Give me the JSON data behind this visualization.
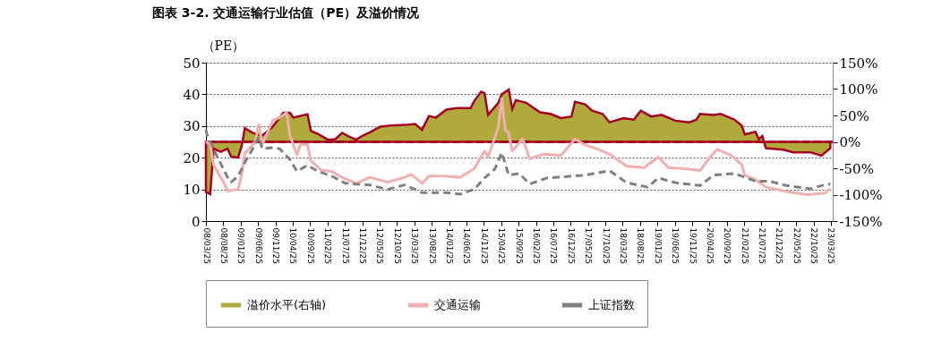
{
  "chart_data": {
    "type": "line",
    "title": "图表 3-2. 交通运输行业估值（PE）及溢价情况",
    "ylabel": "（PE）",
    "xlim": [
      "2008-03-25",
      "2023-04-10"
    ],
    "xticks": [
      {
        "value": "2008-03-25",
        "label": "08/03/25"
      },
      {
        "value": "2008-08-25",
        "label": "08/08/25"
      },
      {
        "value": "2009-01-25",
        "label": "09/01/25"
      },
      {
        "value": "2009-06-25",
        "label": "09/06/25"
      },
      {
        "value": "2009-11-25",
        "label": "09/11/25"
      },
      {
        "value": "2010-04-25",
        "label": "10/04/25"
      },
      {
        "value": "2010-09-25",
        "label": "10/09/25"
      },
      {
        "value": "2011-02-25",
        "label": "11/02/25"
      },
      {
        "value": "2011-07-25",
        "label": "11/07/25"
      },
      {
        "value": "2011-12-25",
        "label": "11/12/25"
      },
      {
        "value": "2012-05-25",
        "label": "12/05/25"
      },
      {
        "value": "2012-10-25",
        "label": "12/10/25"
      },
      {
        "value": "2013-03-25",
        "label": "13/03/25"
      },
      {
        "value": "2013-08-25",
        "label": "13/08/25"
      },
      {
        "value": "2014-01-25",
        "label": "14/01/25"
      },
      {
        "value": "2014-06-25",
        "label": "14/06/25"
      },
      {
        "value": "2014-11-25",
        "label": "14/11/25"
      },
      {
        "value": "2015-04-25",
        "label": "15/04/25"
      },
      {
        "value": "2015-09-25",
        "label": "15/09/25"
      },
      {
        "value": "2016-02-25",
        "label": "16/02/25"
      },
      {
        "value": "2016-07-25",
        "label": "16/07/25"
      },
      {
        "value": "2016-12-25",
        "label": "16/12/25"
      },
      {
        "value": "2017-05-25",
        "label": "17/05/25"
      },
      {
        "value": "2017-10-25",
        "label": "17/10/25"
      },
      {
        "value": "2018-03-25",
        "label": "18/03/25"
      },
      {
        "value": "2018-08-25",
        "label": "18/08/25"
      },
      {
        "value": "2019-01-25",
        "label": "19/01/25"
      },
      {
        "value": "2019-06-25",
        "label": "19/06/25"
      },
      {
        "value": "2019-11-25",
        "label": "19/11/25"
      },
      {
        "value": "2020-04-25",
        "label": "20/04/25"
      },
      {
        "value": "2020-09-25",
        "label": "20/09/25"
      },
      {
        "value": "2021-02-25",
        "label": "21/02/25"
      },
      {
        "value": "2021-07-25",
        "label": "21/07/25"
      },
      {
        "value": "2021-12-25",
        "label": "21/12/25"
      },
      {
        "value": "2022-05-25",
        "label": "22/05/25"
      },
      {
        "value": "2022-10-25",
        "label": "22/10/25"
      },
      {
        "value": "2023-03-25",
        "label": "23/03/25"
      }
    ],
    "ylim": [
      0,
      50
    ],
    "yticks": [
      0,
      10,
      20,
      30,
      40,
      50
    ],
    "y2lim": [
      -150,
      150
    ],
    "y2ticks": [
      {
        "value": 150,
        "label": "150%"
      },
      {
        "value": 100,
        "label": "100%"
      },
      {
        "value": 50,
        "label": "50%"
      },
      {
        "value": 0,
        "label": "0%"
      },
      {
        "value": -50,
        "label": "-50%"
      },
      {
        "value": -100,
        "label": "-100%"
      },
      {
        "value": -150,
        "label": "-150%"
      }
    ],
    "grid": "y",
    "legend": "bottom",
    "ref_lines": [
      {
        "axis": "y2",
        "value": 0,
        "color": "#a50021",
        "line_style": "dashed"
      }
    ],
    "series": [
      {
        "name": "溢价水平(右轴)",
        "type": "area",
        "axis": "y2",
        "color": "#b0aa3c",
        "x": [
          "2008-03-25",
          "2008-05",
          "2008-06",
          "2008-08",
          "2008-10",
          "2008-11",
          "2009-01",
          "2009-02",
          "2009-03",
          "2009-05",
          "2009-06",
          "2009-08",
          "2009-10",
          "2009-11",
          "2010-01",
          "2010-02",
          "2010-04",
          "2010-05",
          "2010-07",
          "2010-09",
          "2010-10",
          "2010-12",
          "2011-03",
          "2011-05",
          "2011-07",
          "2011-09",
          "2011-11",
          "2012-01",
          "2012-03",
          "2012-06",
          "2012-09",
          "2013-01",
          "2013-04",
          "2013-06",
          "2013-08",
          "2013-10",
          "2014-01",
          "2014-04",
          "2014-08",
          "2014-09",
          "2014-11",
          "2014-12",
          "2015-01",
          "2015-04",
          "2015-05",
          "2015-07",
          "2015-08",
          "2015-09",
          "2015-12",
          "2016-04",
          "2016-07",
          "2016-10",
          "2017-01",
          "2017-02",
          "2017-05",
          "2017-07",
          "2017-10",
          "2017-12",
          "2018-04",
          "2018-07",
          "2018-09",
          "2018-12",
          "2019-03",
          "2019-07",
          "2019-11",
          "2020-01",
          "2020-02",
          "2020-06",
          "2020-08",
          "2020-12",
          "2021-02",
          "2021-03",
          "2021-06",
          "2021-07",
          "2021-08",
          "2021-09",
          "2022-02",
          "2022-05",
          "2022-10",
          "2023-01",
          "2023-03-20"
        ],
        "values": [
          -95,
          -99,
          -13,
          -19,
          -13,
          -28,
          -30,
          -8,
          26,
          18,
          15,
          12,
          23,
          29,
          46,
          55,
          55,
          46,
          49,
          52,
          21,
          15,
          4,
          5,
          17,
          10,
          4,
          12,
          18,
          29,
          31,
          32,
          34,
          23,
          49,
          46,
          61,
          64,
          64,
          77,
          95,
          92,
          51,
          74,
          90,
          99,
          62,
          79,
          74,
          56,
          53,
          45,
          48,
          76,
          71,
          59,
          53,
          37,
          45,
          42,
          59,
          48,
          51,
          40,
          37,
          42,
          53,
          51,
          53,
          42,
          31,
          14,
          19,
          5,
          11,
          -12,
          -15,
          -20,
          -20,
          -26,
          -12
        ]
      },
      {
        "name": "交通运输",
        "type": "line",
        "line_style": "solid",
        "color": "#f0b0b0",
        "x": [
          "2008-03-25",
          "2008-05",
          "2008-06",
          "2008-09",
          "2008-10",
          "2009-01",
          "2009-02",
          "2009-03",
          "2009-06",
          "2009-07",
          "2009-08",
          "2009-11",
          "2010-01",
          "2010-03",
          "2010-04",
          "2010-06",
          "2010-07",
          "2010-09",
          "2010-10",
          "2011-01",
          "2011-04",
          "2011-07",
          "2011-11",
          "2012-03",
          "2012-08",
          "2013-01",
          "2013-03",
          "2013-06",
          "2013-08",
          "2013-12",
          "2014-05",
          "2014-09",
          "2014-12",
          "2015-01",
          "2015-04",
          "2015-05",
          "2015-06",
          "2015-07",
          "2015-08",
          "2015-11",
          "2016-01",
          "2016-05",
          "2016-10",
          "2017-02",
          "2017-05",
          "2017-08",
          "2017-12",
          "2018-05",
          "2018-10",
          "2019-02",
          "2019-05",
          "2019-11",
          "2020-02",
          "2020-05",
          "2020-07",
          "2020-11",
          "2021-02",
          "2021-03",
          "2021-06",
          "2021-09",
          "2022-03",
          "2022-09",
          "2023-02",
          "2023-03-20"
        ],
        "values": [
          25.1,
          24.2,
          17.6,
          11.9,
          9.5,
          10,
          14.7,
          21.3,
          25.1,
          30.4,
          24.2,
          31.8,
          32.7,
          34.2,
          27,
          20.9,
          24.2,
          24.2,
          19,
          16.1,
          15.7,
          13.8,
          11.9,
          13.8,
          12.3,
          13.8,
          14.7,
          11.9,
          14.2,
          14.2,
          13.8,
          16.5,
          22.1,
          20.2,
          29.7,
          38.7,
          28.7,
          27.8,
          22.1,
          25.9,
          19.7,
          21.1,
          20.7,
          25.9,
          24,
          23,
          21.1,
          17.3,
          16.9,
          20.2,
          16.9,
          16.4,
          15.9,
          20.2,
          22.6,
          20.7,
          17.8,
          14.5,
          13.1,
          10.7,
          9.3,
          8.3,
          8.8,
          10.2
        ]
      },
      {
        "name": "上证指数",
        "type": "line",
        "line_style": "dashed",
        "color": "#808080",
        "x": [
          "2008-03-25",
          "2008-04",
          "2008-07",
          "2008-10",
          "2008-11",
          "2009-01",
          "2009-03",
          "2009-05",
          "2009-07",
          "2009-08",
          "2009-11",
          "2010-01",
          "2010-04",
          "2010-06",
          "2010-09",
          "2010-12",
          "2011-04",
          "2011-08",
          "2012-03",
          "2012-08",
          "2013-01",
          "2013-06",
          "2014-01",
          "2014-05",
          "2014-09",
          "2014-12",
          "2015-03",
          "2015-05",
          "2015-07",
          "2015-10",
          "2016-01",
          "2016-06",
          "2016-11",
          "2017-05",
          "2017-12",
          "2018-05",
          "2018-11",
          "2019-02",
          "2019-07",
          "2020-02",
          "2020-06",
          "2020-12",
          "2021-06",
          "2021-10",
          "2022-03",
          "2022-10",
          "2023-01",
          "2023-03-20"
        ],
        "values": [
          28.9,
          27.5,
          20.4,
          13.8,
          12.3,
          14.2,
          18.5,
          22.3,
          26.6,
          22.8,
          23.2,
          22.8,
          19.4,
          15.7,
          17.6,
          15.7,
          14.2,
          11.9,
          11.4,
          10,
          11.4,
          9,
          9,
          8.5,
          10,
          13.6,
          16.4,
          21.6,
          14.5,
          15,
          11.7,
          13.6,
          14,
          14.5,
          15.9,
          12.1,
          10.7,
          13.6,
          12.1,
          11.2,
          14.5,
          15,
          12.6,
          12.6,
          11.2,
          10.2,
          11.2,
          11.7
        ]
      }
    ]
  }
}
